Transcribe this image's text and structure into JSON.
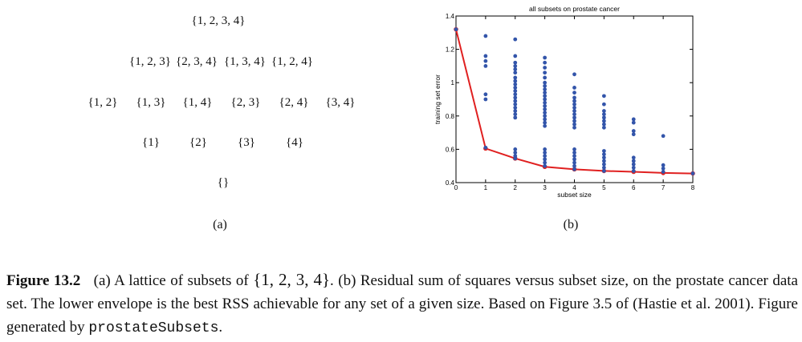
{
  "lattice": {
    "rows": [
      [
        "{1, 2, 3, 4}"
      ],
      [
        "{1, 2, 3}",
        "{2, 3, 4}",
        "{1, 3, 4}",
        "{1, 2, 4}"
      ],
      [
        "{1, 2}",
        "{1, 3}",
        "{1, 4}",
        "{2, 3}",
        "{2, 4}",
        "{3, 4}"
      ],
      [
        "{1}",
        "{2}",
        "{3}",
        "{4}"
      ],
      [
        "{}"
      ]
    ],
    "label": "(a)"
  },
  "panel_b_label": "(b)",
  "chart_data": {
    "type": "scatter",
    "title": "all subsets on prostate cancer",
    "xlabel": "subset size",
    "ylabel": "training set error",
    "xlim": [
      0,
      8
    ],
    "ylim": [
      0.4,
      1.4
    ],
    "xticks": [
      0,
      1,
      2,
      3,
      4,
      5,
      6,
      7,
      8
    ],
    "yticks": [
      0.4,
      0.6,
      0.8,
      1,
      1.2,
      1.4
    ],
    "ytick_labels": [
      "0.4",
      "0.6",
      "0.8",
      "1",
      "1.2",
      "1.4"
    ],
    "series": [
      {
        "kind": "points",
        "color": "#3355aa",
        "points": [
          [
            0,
            1.32
          ],
          [
            1,
            1.28
          ],
          [
            1,
            1.16
          ],
          [
            1,
            1.13
          ],
          [
            1,
            1.1
          ],
          [
            1,
            0.93
          ],
          [
            1,
            0.9
          ],
          [
            1,
            0.61
          ],
          [
            2,
            1.26
          ],
          [
            2,
            1.16
          ],
          [
            2,
            1.12
          ],
          [
            2,
            1.1
          ],
          [
            2,
            1.08
          ],
          [
            2,
            1.06
          ],
          [
            2,
            1.03
          ],
          [
            2,
            1.01
          ],
          [
            2,
            0.99
          ],
          [
            2,
            0.97
          ],
          [
            2,
            0.95
          ],
          [
            2,
            0.93
          ],
          [
            2,
            0.91
          ],
          [
            2,
            0.89
          ],
          [
            2,
            0.87
          ],
          [
            2,
            0.85
          ],
          [
            2,
            0.83
          ],
          [
            2,
            0.81
          ],
          [
            2,
            0.79
          ],
          [
            2,
            0.6
          ],
          [
            2,
            0.58
          ],
          [
            2,
            0.56
          ],
          [
            2,
            0.545
          ],
          [
            3,
            1.15
          ],
          [
            3,
            1.12
          ],
          [
            3,
            1.09
          ],
          [
            3,
            1.06
          ],
          [
            3,
            1.03
          ],
          [
            3,
            1.0
          ],
          [
            3,
            0.98
          ],
          [
            3,
            0.96
          ],
          [
            3,
            0.94
          ],
          [
            3,
            0.92
          ],
          [
            3,
            0.9
          ],
          [
            3,
            0.88
          ],
          [
            3,
            0.86
          ],
          [
            3,
            0.84
          ],
          [
            3,
            0.82
          ],
          [
            3,
            0.8
          ],
          [
            3,
            0.78
          ],
          [
            3,
            0.76
          ],
          [
            3,
            0.74
          ],
          [
            3,
            0.6
          ],
          [
            3,
            0.58
          ],
          [
            3,
            0.56
          ],
          [
            3,
            0.54
          ],
          [
            3,
            0.52
          ],
          [
            3,
            0.5
          ],
          [
            4,
            1.05
          ],
          [
            4,
            0.97
          ],
          [
            4,
            0.94
          ],
          [
            4,
            0.91
          ],
          [
            4,
            0.89
          ],
          [
            4,
            0.87
          ],
          [
            4,
            0.85
          ],
          [
            4,
            0.83
          ],
          [
            4,
            0.81
          ],
          [
            4,
            0.79
          ],
          [
            4,
            0.77
          ],
          [
            4,
            0.75
          ],
          [
            4,
            0.73
          ],
          [
            4,
            0.6
          ],
          [
            4,
            0.58
          ],
          [
            4,
            0.56
          ],
          [
            4,
            0.54
          ],
          [
            4,
            0.52
          ],
          [
            4,
            0.5
          ],
          [
            4,
            0.48
          ],
          [
            5,
            0.92
          ],
          [
            5,
            0.87
          ],
          [
            5,
            0.83
          ],
          [
            5,
            0.81
          ],
          [
            5,
            0.79
          ],
          [
            5,
            0.77
          ],
          [
            5,
            0.75
          ],
          [
            5,
            0.73
          ],
          [
            5,
            0.59
          ],
          [
            5,
            0.57
          ],
          [
            5,
            0.55
          ],
          [
            5,
            0.53
          ],
          [
            5,
            0.51
          ],
          [
            5,
            0.49
          ],
          [
            5,
            0.47
          ],
          [
            6,
            0.78
          ],
          [
            6,
            0.76
          ],
          [
            6,
            0.71
          ],
          [
            6,
            0.69
          ],
          [
            6,
            0.55
          ],
          [
            6,
            0.53
          ],
          [
            6,
            0.51
          ],
          [
            6,
            0.49
          ],
          [
            6,
            0.47
          ],
          [
            7,
            0.68
          ],
          [
            7,
            0.505
          ],
          [
            7,
            0.485
          ],
          [
            7,
            0.465
          ],
          [
            8,
            0.455
          ]
        ]
      },
      {
        "kind": "line",
        "color": "#e02020",
        "points": [
          [
            0,
            1.32
          ],
          [
            1,
            0.605
          ],
          [
            2,
            0.545
          ],
          [
            3,
            0.495
          ],
          [
            4,
            0.48
          ],
          [
            5,
            0.47
          ],
          [
            6,
            0.465
          ],
          [
            7,
            0.458
          ],
          [
            8,
            0.455
          ]
        ]
      }
    ]
  },
  "caption": {
    "fig_label": "Figure 13.2",
    "text_before_math": "(a) A lattice of subsets of",
    "math": "{1, 2, 3, 4}",
    "text_after_math": ". (b) Residual sum of squares versus subset size, on the prostate cancer data set. The lower envelope is the best RSS achievable for any set of a given size. Based on Figure 3.5 of (Hastie et al. 2001). Figure generated by",
    "code": "prostateSubsets",
    "end": "."
  }
}
